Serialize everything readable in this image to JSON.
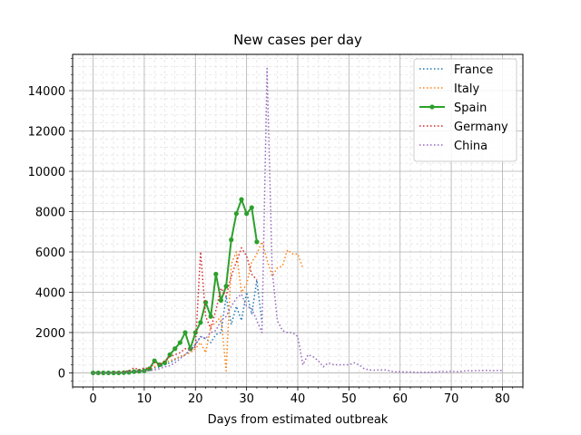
{
  "chart_data": {
    "type": "line",
    "title": "New cases per day",
    "xlabel": "Days from estimated outbreak",
    "ylabel": "",
    "xlim": [
      -4,
      84
    ],
    "ylim": [
      -700,
      15800
    ],
    "xticks": [
      0,
      10,
      20,
      30,
      40,
      50,
      60,
      70,
      80
    ],
    "yticks": [
      0,
      2000,
      4000,
      6000,
      8000,
      10000,
      12000,
      14000
    ],
    "grid": true,
    "minor_grid": true,
    "legend_position": "top-right",
    "series": [
      {
        "name": "France",
        "color": "#1f77b4",
        "style": "dotted",
        "points": [
          [
            0,
            0
          ],
          [
            1,
            0
          ],
          [
            2,
            0
          ],
          [
            3,
            5
          ],
          [
            4,
            10
          ],
          [
            5,
            20
          ],
          [
            6,
            30
          ],
          [
            7,
            40
          ],
          [
            8,
            60
          ],
          [
            9,
            80
          ],
          [
            10,
            100
          ],
          [
            11,
            150
          ],
          [
            12,
            250
          ],
          [
            13,
            300
          ],
          [
            14,
            400
          ],
          [
            15,
            500
          ],
          [
            16,
            650
          ],
          [
            17,
            800
          ],
          [
            18,
            900
          ],
          [
            19,
            1100
          ],
          [
            20,
            1400
          ],
          [
            21,
            1800
          ],
          [
            22,
            1700
          ],
          [
            23,
            1500
          ],
          [
            24,
            1900
          ],
          [
            25,
            2000
          ],
          [
            26,
            3800
          ],
          [
            27,
            2400
          ],
          [
            28,
            3300
          ],
          [
            29,
            2600
          ],
          [
            30,
            4000
          ],
          [
            31,
            2900
          ],
          [
            32,
            4600
          ],
          [
            33,
            2500
          ]
        ]
      },
      {
        "name": "Italy",
        "color": "#ff7f0e",
        "style": "dotted",
        "points": [
          [
            0,
            0
          ],
          [
            1,
            0
          ],
          [
            2,
            0
          ],
          [
            3,
            10
          ],
          [
            4,
            20
          ],
          [
            5,
            30
          ],
          [
            6,
            40
          ],
          [
            7,
            60
          ],
          [
            8,
            80
          ],
          [
            9,
            100
          ],
          [
            10,
            150
          ],
          [
            11,
            200
          ],
          [
            12,
            300
          ],
          [
            13,
            400
          ],
          [
            14,
            500
          ],
          [
            15,
            600
          ],
          [
            16,
            700
          ],
          [
            17,
            800
          ],
          [
            18,
            900
          ],
          [
            19,
            1000
          ],
          [
            20,
            1200
          ],
          [
            21,
            1500
          ],
          [
            22,
            1000
          ],
          [
            23,
            2300
          ],
          [
            24,
            2500
          ],
          [
            25,
            2800
          ],
          [
            26,
            100
          ],
          [
            27,
            5400
          ],
          [
            28,
            6000
          ],
          [
            29,
            4000
          ],
          [
            30,
            4400
          ],
          [
            31,
            5500
          ],
          [
            32,
            5900
          ],
          [
            33,
            6500
          ],
          [
            34,
            5600
          ],
          [
            35,
            4800
          ],
          [
            36,
            5200
          ],
          [
            37,
            5300
          ],
          [
            38,
            6100
          ],
          [
            39,
            5900
          ],
          [
            40,
            5900
          ],
          [
            41,
            5200
          ]
        ]
      },
      {
        "name": "Spain",
        "color": "#2ca02c",
        "style": "solid-markers",
        "points": [
          [
            0,
            0
          ],
          [
            1,
            0
          ],
          [
            2,
            0
          ],
          [
            3,
            0
          ],
          [
            4,
            0
          ],
          [
            5,
            0
          ],
          [
            6,
            10
          ],
          [
            7,
            30
          ],
          [
            8,
            60
          ],
          [
            9,
            80
          ],
          [
            10,
            100
          ],
          [
            11,
            200
          ],
          [
            12,
            600
          ],
          [
            13,
            400
          ],
          [
            14,
            500
          ],
          [
            15,
            900
          ],
          [
            16,
            1200
          ],
          [
            17,
            1500
          ],
          [
            18,
            2000
          ],
          [
            19,
            1200
          ],
          [
            20,
            2000
          ],
          [
            21,
            2500
          ],
          [
            22,
            3500
          ],
          [
            23,
            2800
          ],
          [
            24,
            4900
          ],
          [
            25,
            3600
          ],
          [
            26,
            4300
          ],
          [
            27,
            6600
          ],
          [
            28,
            7900
          ],
          [
            29,
            8600
          ],
          [
            30,
            7900
          ],
          [
            31,
            8200
          ],
          [
            32,
            6500
          ]
        ]
      },
      {
        "name": "Germany",
        "color": "#d62728",
        "style": "dotted",
        "points": [
          [
            0,
            0
          ],
          [
            1,
            0
          ],
          [
            2,
            0
          ],
          [
            3,
            10
          ],
          [
            4,
            20
          ],
          [
            5,
            30
          ],
          [
            6,
            60
          ],
          [
            7,
            100
          ],
          [
            8,
            250
          ],
          [
            9,
            150
          ],
          [
            10,
            250
          ],
          [
            11,
            200
          ],
          [
            12,
            500
          ],
          [
            13,
            400
          ],
          [
            14,
            600
          ],
          [
            15,
            800
          ],
          [
            16,
            900
          ],
          [
            17,
            1000
          ],
          [
            18,
            1200
          ],
          [
            19,
            1100
          ],
          [
            20,
            1300
          ],
          [
            21,
            6000
          ],
          [
            22,
            2800
          ],
          [
            23,
            2200
          ],
          [
            24,
            3100
          ],
          [
            25,
            4200
          ],
          [
            26,
            3800
          ],
          [
            27,
            4800
          ],
          [
            28,
            5500
          ],
          [
            29,
            6200
          ],
          [
            30,
            5800
          ],
          [
            31,
            4900
          ],
          [
            32,
            4600
          ]
        ]
      },
      {
        "name": "China",
        "color": "#9467bd",
        "style": "dotted",
        "points": [
          [
            0,
            0
          ],
          [
            1,
            0
          ],
          [
            2,
            0
          ],
          [
            3,
            0
          ],
          [
            4,
            0
          ],
          [
            5,
            10
          ],
          [
            6,
            20
          ],
          [
            7,
            40
          ],
          [
            8,
            60
          ],
          [
            9,
            80
          ],
          [
            10,
            100
          ],
          [
            11,
            100
          ],
          [
            12,
            150
          ],
          [
            13,
            200
          ],
          [
            14,
            300
          ],
          [
            15,
            350
          ],
          [
            16,
            500
          ],
          [
            17,
            700
          ],
          [
            18,
            900
          ],
          [
            19,
            1200
          ],
          [
            20,
            1400
          ],
          [
            21,
            1800
          ],
          [
            22,
            1700
          ],
          [
            23,
            2000
          ],
          [
            24,
            2100
          ],
          [
            25,
            2600
          ],
          [
            26,
            2800
          ],
          [
            27,
            3300
          ],
          [
            28,
            3700
          ],
          [
            29,
            3900
          ],
          [
            30,
            3300
          ],
          [
            31,
            3200
          ],
          [
            32,
            2600
          ],
          [
            33,
            2000
          ],
          [
            34,
            15100
          ],
          [
            35,
            5100
          ],
          [
            36,
            2600
          ],
          [
            37,
            2100
          ],
          [
            38,
            2000
          ],
          [
            39,
            2000
          ],
          [
            40,
            1800
          ],
          [
            41,
            400
          ],
          [
            42,
            900
          ],
          [
            43,
            800
          ],
          [
            44,
            600
          ],
          [
            45,
            300
          ],
          [
            46,
            500
          ],
          [
            47,
            400
          ],
          [
            48,
            400
          ],
          [
            49,
            400
          ],
          [
            50,
            400
          ],
          [
            51,
            500
          ],
          [
            52,
            400
          ],
          [
            53,
            200
          ],
          [
            54,
            150
          ],
          [
            55,
            130
          ],
          [
            56,
            150
          ],
          [
            57,
            150
          ],
          [
            58,
            100
          ],
          [
            59,
            50
          ],
          [
            60,
            60
          ],
          [
            61,
            50
          ],
          [
            62,
            40
          ],
          [
            63,
            30
          ],
          [
            64,
            20
          ],
          [
            65,
            30
          ],
          [
            66,
            30
          ],
          [
            67,
            40
          ],
          [
            68,
            70
          ],
          [
            69,
            60
          ],
          [
            70,
            80
          ],
          [
            71,
            60
          ],
          [
            72,
            70
          ],
          [
            73,
            110
          ],
          [
            74,
            100
          ],
          [
            75,
            110
          ],
          [
            76,
            120
          ],
          [
            77,
            120
          ],
          [
            78,
            110
          ],
          [
            79,
            120
          ],
          [
            80,
            120
          ]
        ]
      }
    ]
  }
}
